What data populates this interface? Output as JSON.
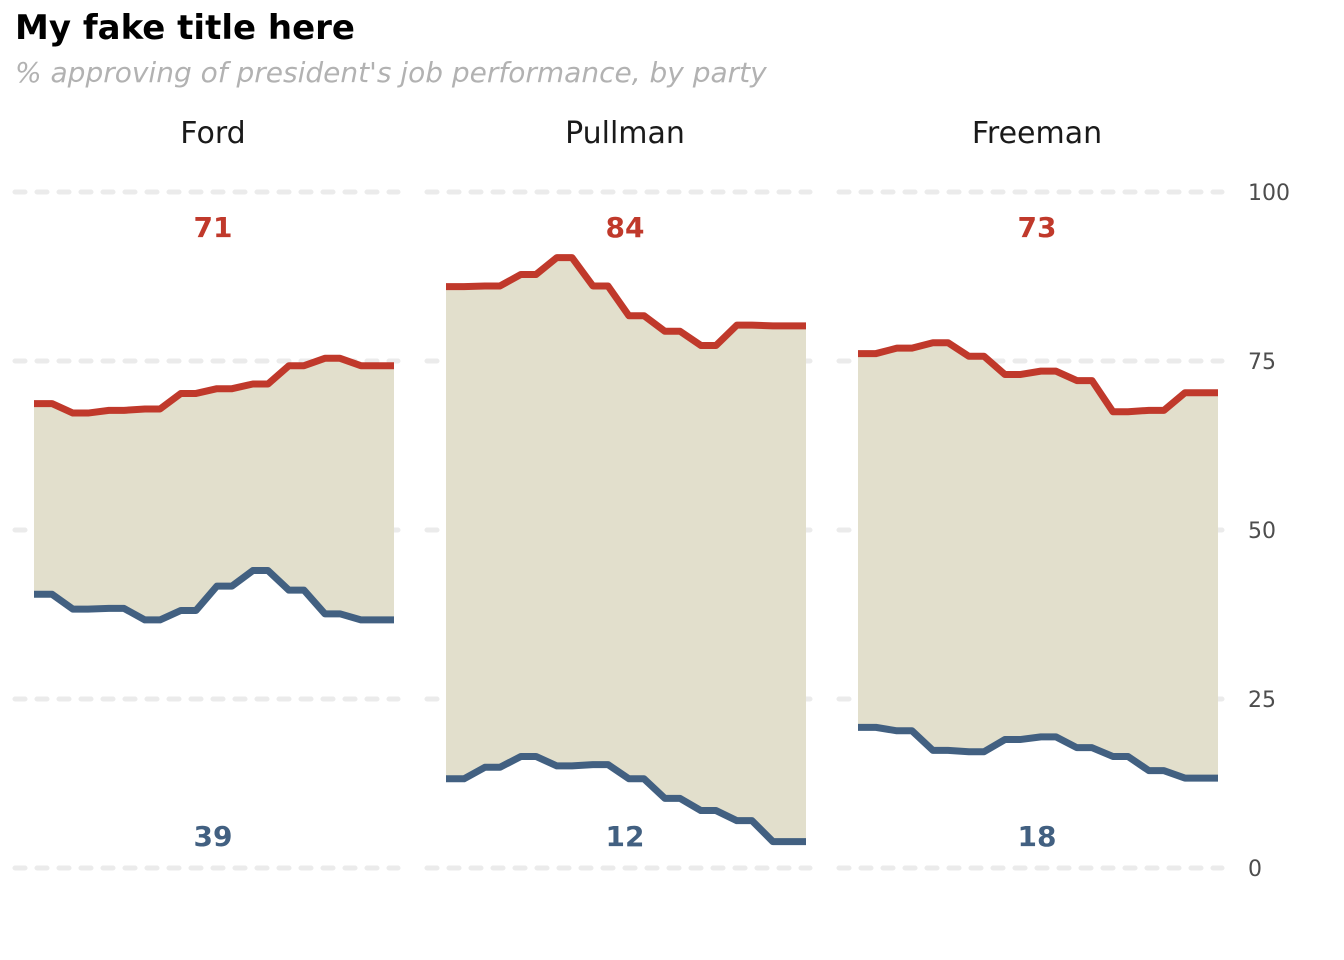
{
  "title": "My fake title here",
  "subtitle": "% approving of president's job performance, by party",
  "colors": {
    "rep": "#c0392b",
    "dem": "#426081",
    "band": "#e2dfcc",
    "grid": "#ebebeb"
  },
  "chart_data": {
    "type": "line",
    "title": "My fake title here",
    "subtitle": "% approving of president's job performance, by party",
    "ylim": [
      0,
      100
    ],
    "yticks": [
      0,
      25,
      50,
      75,
      100
    ],
    "y_axis_position": "right",
    "grid": "horizontal dashed",
    "panels": [
      {
        "name": "Ford",
        "label_top": "71",
        "label_bottom": "39",
        "series": [
          {
            "role": "top",
            "values": [
              68.7,
              67.3,
              67.7,
              67.9,
              70.2,
              70.9,
              71.6,
              74.3,
              75.4,
              74.3
            ]
          },
          {
            "role": "bottom",
            "values": [
              40.5,
              38.3,
              38.4,
              36.7,
              38.1,
              41.7,
              44.0,
              41.1,
              37.6,
              36.7
            ]
          }
        ]
      },
      {
        "name": "Pullman",
        "label_top": "84",
        "label_bottom": "12",
        "series": [
          {
            "role": "top",
            "values": [
              86.0,
              86.1,
              87.8,
              90.3,
              86.1,
              81.7,
              79.4,
              77.3,
              80.3,
              80.2
            ]
          },
          {
            "role": "bottom",
            "values": [
              13.2,
              14.9,
              16.5,
              15.1,
              15.3,
              13.2,
              10.3,
              8.5,
              7.0,
              3.9
            ]
          }
        ]
      },
      {
        "name": "Freeman",
        "label_top": "73",
        "label_bottom": "18",
        "series": [
          {
            "role": "top",
            "values": [
              76.1,
              76.9,
              77.7,
              75.7,
              73.0,
              73.5,
              72.1,
              67.5,
              67.7,
              70.3
            ]
          },
          {
            "role": "bottom",
            "values": [
              20.8,
              20.3,
              17.4,
              17.2,
              19.0,
              19.4,
              17.8,
              16.5,
              14.4,
              13.3
            ]
          }
        ]
      }
    ]
  }
}
